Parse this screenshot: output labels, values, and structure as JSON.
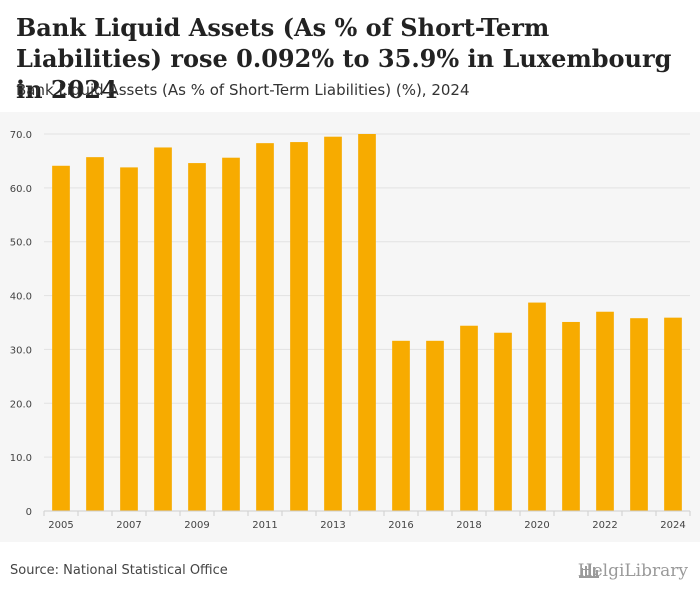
{
  "header": {
    "title": "Bank Liquid Assets (As % of Short-Term Liabilities) rose 0.092% to 35.9% in Luxembourg in 2024",
    "subtitle": "Bank Liquid Assets (As % of Short-Term Liabilities) (%), 2024"
  },
  "footer": {
    "source": "Source: National Statistical Office",
    "logo_text": "HelgiLibrary"
  },
  "colors": {
    "bar": "#f7ab00",
    "grid": "#e2e2e2",
    "axis_text": "#444444",
    "background": "#f6f6f6"
  },
  "chart_data": {
    "type": "bar",
    "title": "Bank Liquid Assets (As % of Short-Term Liabilities) (%), 2024",
    "xlabel": "",
    "ylabel": "",
    "ylim": [
      0,
      70
    ],
    "y_ticks": [
      "0",
      "10.0",
      "20.0",
      "30.0",
      "40.0",
      "50.0",
      "60.0",
      "70.0"
    ],
    "y_tick_values": [
      0,
      10,
      20,
      30,
      40,
      50,
      60,
      70
    ],
    "categories": [
      "2005",
      "2006",
      "2007",
      "2008",
      "2009",
      "2010",
      "2011",
      "2012",
      "2013",
      "2014",
      "2016",
      "2017",
      "2018",
      "2019",
      "2020",
      "2021",
      "2022",
      "2023",
      "2024"
    ],
    "x_tick_labels": [
      "2005",
      "2007",
      "2009",
      "2011",
      "2013",
      "2016",
      "2018",
      "2020",
      "2022",
      "2024"
    ],
    "values": [
      64.1,
      65.7,
      63.8,
      67.5,
      64.6,
      65.6,
      68.3,
      68.5,
      69.5,
      70.0,
      31.6,
      31.6,
      34.4,
      33.1,
      38.7,
      35.1,
      37.0,
      35.8,
      35.9
    ],
    "grid": true
  }
}
